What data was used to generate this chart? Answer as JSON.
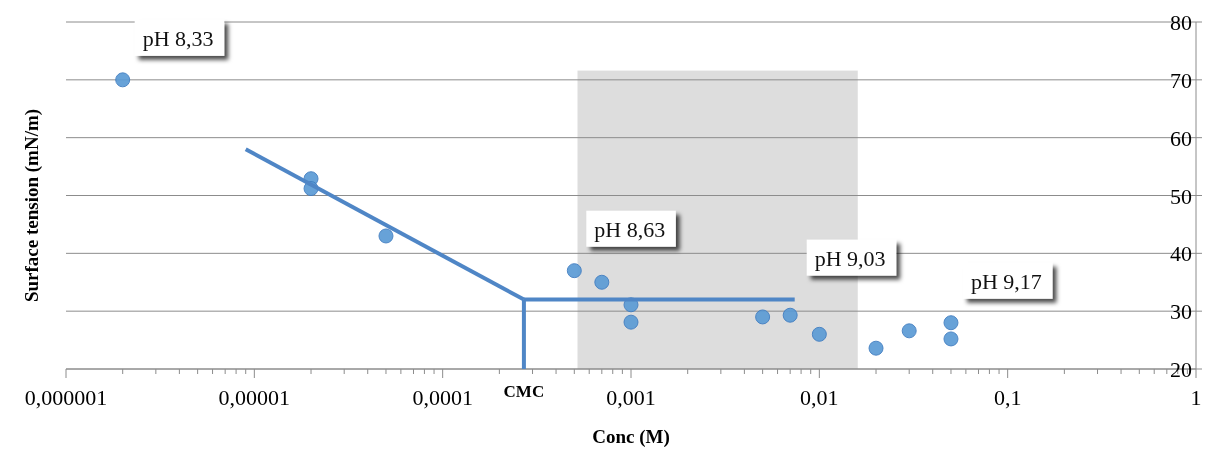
{
  "chart_data": {
    "type": "scatter",
    "xlabel": "Conc (M)",
    "ylabel": "Surface tension (mN/m)",
    "log": "x",
    "xlim": [
      1e-06,
      1
    ],
    "ylim": [
      20,
      80
    ],
    "xticks": [
      {
        "value": 1e-06,
        "label": "0,000001"
      },
      {
        "value": 1e-05,
        "label": "0,00001"
      },
      {
        "value": 0.0001,
        "label": "0,0001"
      },
      {
        "value": 0.001,
        "label": "0,001"
      },
      {
        "value": 0.01,
        "label": "0,01"
      },
      {
        "value": 0.1,
        "label": "0,1"
      },
      1
    ],
    "yticks": [
      20,
      30,
      40,
      50,
      60,
      70,
      80
    ],
    "grid": "y",
    "series": [
      {
        "marker": "circle",
        "color": "#5b9bd5",
        "x": [
          2e-06,
          2e-05,
          2e-05,
          5e-05,
          0.0005,
          0.0007,
          0.001,
          0.001,
          0.005,
          0.007,
          0.01,
          0.02,
          0.03,
          0.05,
          0.05
        ],
        "values": [
          70,
          52.9,
          51.2,
          43,
          37,
          35,
          31.1,
          28.1,
          29,
          29.3,
          26,
          23.6,
          26.6,
          28,
          25.2
        ]
      },
      {
        "type": "line",
        "marker": "none",
        "color": "#4f86c6",
        "x": [
          9e-06,
          0.00027
        ],
        "values": [
          58,
          32
        ]
      },
      {
        "type": "line",
        "marker": "none",
        "color": "#4f86c6",
        "x": [
          0.00027,
          0.0074
        ],
        "values": [
          32,
          32
        ]
      },
      {
        "type": "line",
        "marker": "none",
        "color": "#4f86c6",
        "x": [
          0.00027,
          0.00027
        ],
        "values": [
          32,
          20
        ]
      }
    ],
    "bands": [
      {
        "axis": "x",
        "from": 0.00052,
        "to": 0.016,
        "color": "#d9d9d9"
      }
    ],
    "annotations": [
      {
        "text": "pH 8,33",
        "x": 2e-06,
        "y": 70
      },
      {
        "text": "pH 8,63",
        "x": 0.0005,
        "y": 37
      },
      {
        "text": "pH 9,03",
        "x": 0.0074,
        "y": 32
      },
      {
        "text": "pH 9,17",
        "x": 0.05,
        "y": 28
      },
      "CMC"
    ]
  }
}
